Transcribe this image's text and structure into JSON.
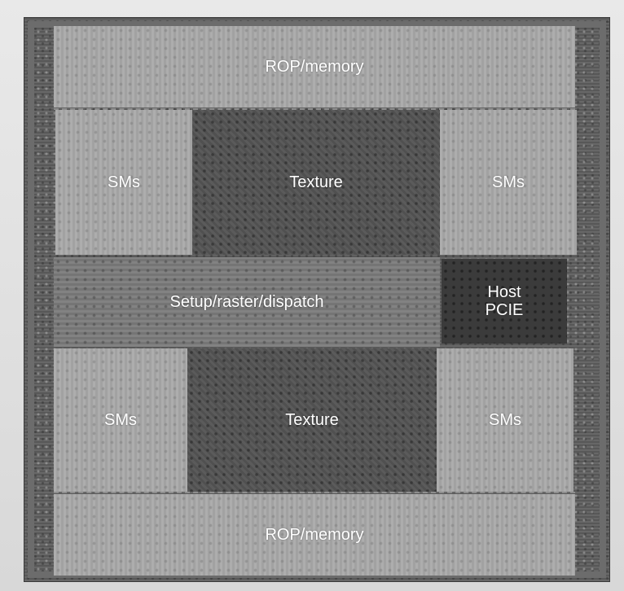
{
  "blocks": {
    "rop_top": "ROP/memory",
    "sm_top_left": "SMs",
    "texture_top": "Texture",
    "sm_top_right": "SMs",
    "setup": "Setup/raster/dispatch",
    "host_line1": "Host",
    "host_line2": "PCIE",
    "sm_bottom_left": "SMs",
    "texture_bottom": "Texture",
    "sm_bottom_right": "SMs",
    "rop_bottom": "ROP/memory"
  }
}
